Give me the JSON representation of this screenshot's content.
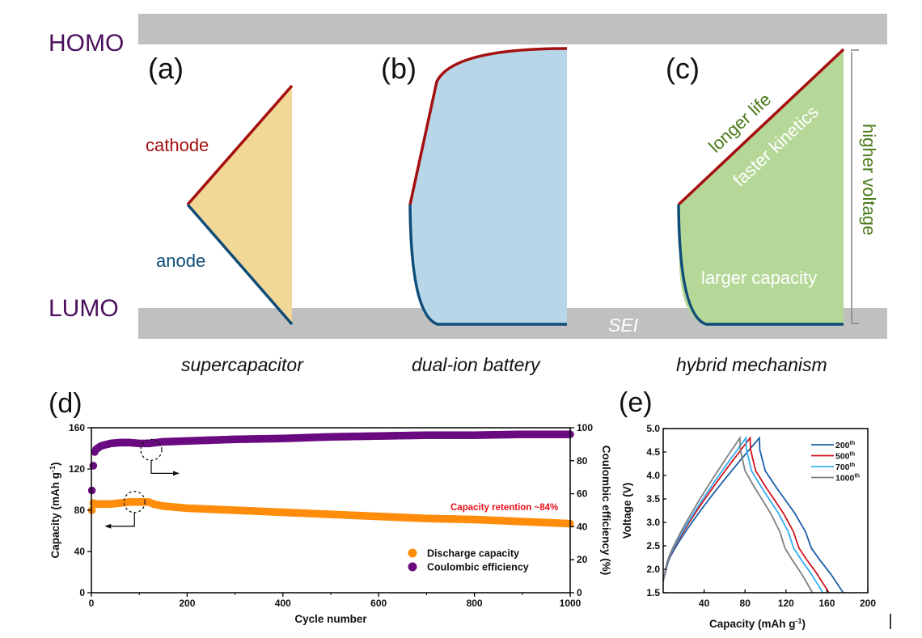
{
  "schematic": {
    "homo_label": "HOMO",
    "lumo_label": "LUMO",
    "sei_label": "SEI",
    "panels": [
      {
        "tag": "(a)",
        "caption": "supercapacitor",
        "cathode_label": "cathode",
        "anode_label": "anode"
      },
      {
        "tag": "(b)",
        "caption": "dual-ion battery"
      },
      {
        "tag": "(c)",
        "caption": "hybrid mechanism",
        "annotations": [
          "longer life",
          "faster kinetics",
          "larger capacity",
          "higher voltage"
        ]
      }
    ],
    "colors": {
      "homo_lumo_text": "#4b0f5c",
      "band": "#c0c0c0",
      "cathode": "#a50f0f",
      "anode": "#0f4c78",
      "fill_a": "#f2d896",
      "fill_b": "#b7d7e8",
      "fill_c": "#b5d898",
      "green_text": "#4a7a1a"
    }
  },
  "chart_data": [
    {
      "panel_tag": "(d)",
      "type": "scatter",
      "title": "",
      "xlabel": "Cycle number",
      "ylabel": "Capacity (mAh g-1)",
      "ylabel_right": "Coulombic efficiency (%)",
      "xlim": [
        0,
        1000
      ],
      "ylim": [
        0,
        160
      ],
      "ylim_right": [
        0,
        100
      ],
      "xticks": [
        "0",
        "200",
        "400",
        "600",
        "800",
        "1000"
      ],
      "yticks": [
        "0",
        "40",
        "80",
        "120",
        "160"
      ],
      "yticks_right": [
        "0",
        "20",
        "40",
        "60",
        "80",
        "100"
      ],
      "annotation": "Capacity retention ~84%",
      "annotation_color": "#e8101a",
      "legend_position": "bottom-right",
      "series": [
        {
          "name": "Discharge capacity",
          "axis": "left",
          "color": "#ff8c0a",
          "x": [
            1,
            3,
            5,
            10,
            20,
            40,
            60,
            80,
            100,
            120,
            130,
            150,
            200,
            300,
            400,
            500,
            600,
            700,
            800,
            900,
            1000
          ],
          "y": [
            80,
            88,
            86,
            86,
            86,
            86,
            87,
            88,
            88,
            88,
            86,
            84,
            82,
            80,
            78,
            76,
            74,
            72,
            71,
            69,
            67
          ]
        },
        {
          "name": "Coulombic efficiency",
          "axis": "right",
          "color": "#6a0a80",
          "x": [
            1,
            3,
            5,
            8,
            10,
            20,
            40,
            60,
            80,
            100,
            120,
            150,
            200,
            300,
            400,
            500,
            600,
            700,
            800,
            900,
            1000
          ],
          "y": [
            62,
            70,
            84,
            86,
            87,
            89,
            90.5,
            91,
            91,
            90.5,
            90.5,
            91.5,
            92,
            93,
            93.5,
            94.5,
            95,
            95.5,
            95.5,
            96,
            96
          ]
        }
      ],
      "markers": {
        "circle_capacity_cycle": 90,
        "circle_ce_cycle": 125
      }
    },
    {
      "panel_tag": "(e)",
      "type": "line",
      "xlabel": "Capacity (mAh g-1)",
      "ylabel": "Voltage (V)",
      "xlim": [
        0,
        200
      ],
      "ylim": [
        1.5,
        5.0
      ],
      "xticks": [
        "40",
        "80",
        "120",
        "160",
        "200"
      ],
      "yticks": [
        "1.5",
        "2.0",
        "2.5",
        "3.0",
        "3.5",
        "4.0",
        "4.5",
        "5.0"
      ],
      "legend_position": "top-right",
      "series": [
        {
          "name": "200th",
          "color": "#1a5fa8",
          "charge_end": 94,
          "discharge_end": 176
        },
        {
          "name": "500th",
          "color": "#d0141e",
          "charge_end": 85,
          "discharge_end": 162
        },
        {
          "name": "700th",
          "color": "#35aef0",
          "charge_end": 81,
          "discharge_end": 156
        },
        {
          "name": "1000th",
          "color": "#808080",
          "charge_end": 75,
          "discharge_end": 146
        }
      ]
    }
  ]
}
